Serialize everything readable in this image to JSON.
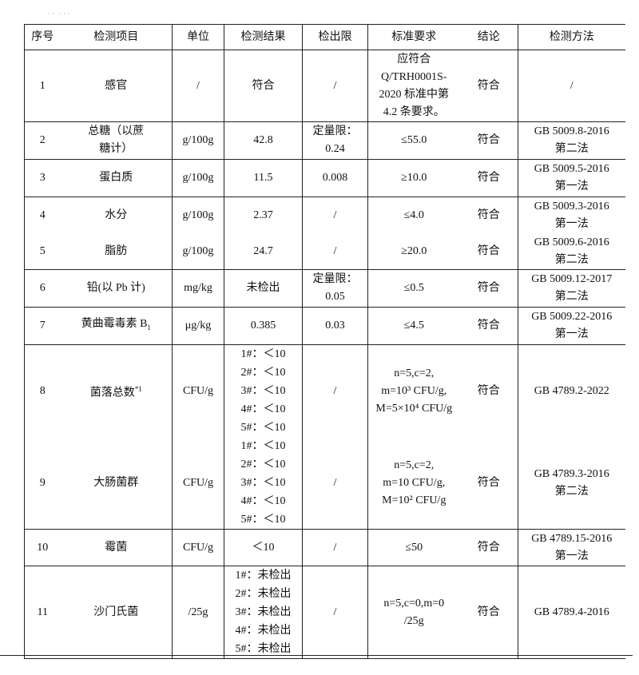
{
  "headers": [
    "序号",
    "检测项目",
    "单位",
    "检测结果",
    "检出限",
    "标准要求",
    "结论",
    "检测方法"
  ],
  "rows": [
    {
      "no": "1",
      "item": "感官",
      "unit": "/",
      "result": "符合",
      "limit": "/",
      "std": [
        "应符合",
        "Q/TRH0001S-",
        "2020 标准中第",
        "4.2 条要求。"
      ],
      "concl": "符合",
      "method": [
        "/"
      ]
    },
    {
      "no": "2",
      "item": "总糖（以蔗糖计）",
      "unit": "g/100g",
      "result": "42.8",
      "limit": [
        "定量限：",
        "0.24"
      ],
      "std": [
        "≤55.0"
      ],
      "concl": "符合",
      "method": [
        "GB 5009.8-2016",
        "第二法"
      ]
    },
    {
      "no": "3",
      "item": "蛋白质",
      "unit": "g/100g",
      "result": "11.5",
      "limit": [
        "0.008"
      ],
      "std": [
        "≥10.0"
      ],
      "concl": "符合",
      "method": [
        "GB 5009.5-2016",
        "第一法"
      ]
    },
    {
      "no": "4",
      "item": "水分",
      "unit": "g/100g",
      "result": "2.37",
      "limit": [
        "/"
      ],
      "std": [
        "≤4.0"
      ],
      "concl": "符合",
      "method": [
        "GB 5009.3-2016",
        "第一法"
      ]
    },
    {
      "no": "5",
      "item": "脂肪",
      "unit": "g/100g",
      "result": "24.7",
      "limit": [
        "/"
      ],
      "std": [
        "≥20.0"
      ],
      "concl": "符合",
      "method": [
        "GB 5009.6-2016",
        "第二法"
      ]
    },
    {
      "no": "6",
      "item": "铅(以 Pb 计)",
      "unit": "mg/kg",
      "result": "未检出",
      "limit": [
        "定量限：",
        "0.05"
      ],
      "std": [
        "≤0.5"
      ],
      "concl": "符合",
      "method": [
        "GB 5009.12-2017",
        "第二法"
      ]
    },
    {
      "no": "7",
      "item": "黄曲霉毒素 B",
      "item_sub": "1",
      "unit": "μg/kg",
      "result": "0.385",
      "limit": [
        "0.03"
      ],
      "std": [
        "≤4.5"
      ],
      "concl": "符合",
      "method": [
        "GB 5009.22-2016",
        "第一法"
      ]
    },
    {
      "no": "8",
      "item": "菌落总数",
      "item_sup": "*1",
      "unit": "CFU/g",
      "results": [
        "1#：＜10",
        "2#：＜10",
        "3#：＜10",
        "4#：＜10",
        "5#：＜10"
      ],
      "limit": [
        "/"
      ],
      "std": [
        "n=5,c=2,",
        "m=10³ CFU/g,",
        "M=5×10⁴ CFU/g"
      ],
      "concl": "符合",
      "method": [
        "GB 4789.2-2022"
      ]
    },
    {
      "no": "9",
      "item": "大肠菌群",
      "unit": "CFU/g",
      "results": [
        "1#：＜10",
        "2#：＜10",
        "3#：＜10",
        "4#：＜10",
        "5#：＜10"
      ],
      "limit": [
        "/"
      ],
      "std": [
        "n=5,c=2,",
        "m=10 CFU/g,",
        "M=10² CFU/g"
      ],
      "concl": "符合",
      "method": [
        "GB 4789.3-2016",
        "第二法"
      ]
    },
    {
      "no": "10",
      "item": "霉菌",
      "unit": "CFU/g",
      "result": "＜10",
      "limit": [
        "/"
      ],
      "std": [
        "≤50"
      ],
      "concl": "符合",
      "method": [
        "GB 4789.15-2016",
        "第一法"
      ]
    },
    {
      "no": "11",
      "item": "沙门氏菌",
      "unit": "/25g",
      "results": [
        "1#：未检出",
        "2#：未检出",
        "3#：未检出",
        "4#：未检出",
        "5#：未检出"
      ],
      "limit": [
        "/"
      ],
      "std": [
        "n=5,c=0,m=0",
        "/25g"
      ],
      "concl": "符合",
      "method": [
        "GB 4789.4-2016"
      ]
    }
  ]
}
